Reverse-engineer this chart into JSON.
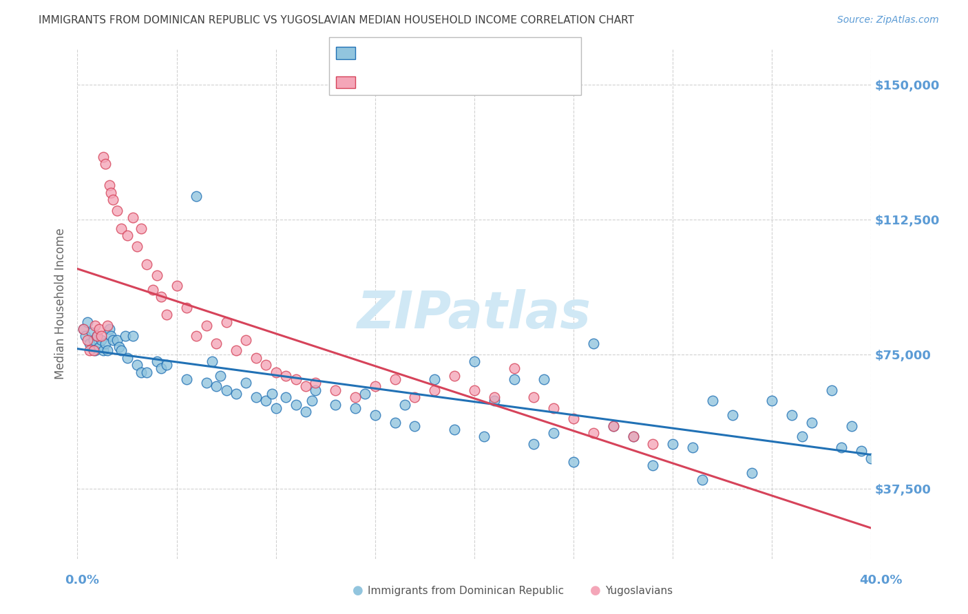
{
  "title": "IMMIGRANTS FROM DOMINICAN REPUBLIC VS YUGOSLAVIAN MEDIAN HOUSEHOLD INCOME CORRELATION CHART",
  "source": "Source: ZipAtlas.com",
  "ylabel": "Median Household Income",
  "y_ticks": [
    37500,
    75000,
    112500,
    150000
  ],
  "y_tick_labels": [
    "$37,500",
    "$75,000",
    "$112,500",
    "$150,000"
  ],
  "x_min": 0.0,
  "x_max": 40.0,
  "y_min": 18000,
  "y_max": 160000,
  "blue_color": "#92c5de",
  "pink_color": "#f4a6b8",
  "line_blue_color": "#2171b5",
  "line_pink_color": "#d6435a",
  "axis_label_color": "#5b9bd5",
  "title_color": "#404040",
  "grid_color": "#cccccc",
  "watermark_color": "#d0e8f5",
  "blue_scatter_x": [
    0.3,
    0.4,
    0.5,
    0.6,
    0.7,
    0.8,
    0.9,
    1.0,
    1.1,
    1.2,
    1.3,
    1.4,
    1.5,
    1.6,
    1.7,
    1.8,
    2.0,
    2.1,
    2.2,
    2.4,
    2.5,
    2.8,
    3.0,
    3.2,
    3.5,
    4.0,
    4.2,
    4.5,
    5.5,
    6.0,
    6.5,
    6.8,
    7.0,
    7.2,
    7.5,
    8.0,
    8.5,
    9.0,
    9.5,
    9.8,
    10.0,
    10.5,
    11.0,
    11.5,
    11.8,
    12.0,
    13.0,
    14.0,
    14.5,
    15.0,
    16.0,
    16.5,
    17.0,
    18.0,
    19.0,
    20.0,
    20.5,
    21.0,
    22.0,
    23.0,
    23.5,
    24.0,
    25.0,
    26.0,
    27.0,
    28.0,
    29.0,
    30.0,
    31.0,
    31.5,
    32.0,
    33.0,
    34.0,
    35.0,
    36.0,
    36.5,
    37.0,
    38.0,
    38.5,
    39.0,
    39.5,
    40.0
  ],
  "blue_scatter_y": [
    82000,
    80000,
    84000,
    78000,
    81000,
    79000,
    76000,
    80000,
    77000,
    79000,
    76000,
    78000,
    76000,
    82000,
    80000,
    79000,
    79000,
    77000,
    76000,
    80000,
    74000,
    80000,
    72000,
    70000,
    70000,
    73000,
    71000,
    72000,
    68000,
    119000,
    67000,
    73000,
    66000,
    69000,
    65000,
    64000,
    67000,
    63000,
    62000,
    64000,
    60000,
    63000,
    61000,
    59000,
    62000,
    65000,
    61000,
    60000,
    64000,
    58000,
    56000,
    61000,
    55000,
    68000,
    54000,
    73000,
    52000,
    62000,
    68000,
    50000,
    68000,
    53000,
    45000,
    78000,
    55000,
    52000,
    44000,
    50000,
    49000,
    40000,
    62000,
    58000,
    42000,
    62000,
    58000,
    52000,
    56000,
    65000,
    49000,
    55000,
    48000,
    46000
  ],
  "pink_scatter_x": [
    0.3,
    0.5,
    0.6,
    0.8,
    0.9,
    1.0,
    1.1,
    1.2,
    1.3,
    1.4,
    1.5,
    1.6,
    1.7,
    1.8,
    2.0,
    2.2,
    2.5,
    2.8,
    3.0,
    3.2,
    3.5,
    3.8,
    4.0,
    4.2,
    4.5,
    5.0,
    5.5,
    6.0,
    6.5,
    7.0,
    7.5,
    8.0,
    8.5,
    9.0,
    9.5,
    10.0,
    10.5,
    11.0,
    11.5,
    12.0,
    13.0,
    14.0,
    15.0,
    16.0,
    17.0,
    18.0,
    19.0,
    20.0,
    21.0,
    22.0,
    23.0,
    24.0,
    25.0,
    26.0,
    27.0,
    28.0,
    29.0
  ],
  "pink_scatter_y": [
    82000,
    79000,
    76000,
    76000,
    83000,
    80000,
    82000,
    80000,
    130000,
    128000,
    83000,
    122000,
    120000,
    118000,
    115000,
    110000,
    108000,
    113000,
    105000,
    110000,
    100000,
    93000,
    97000,
    91000,
    86000,
    94000,
    88000,
    80000,
    83000,
    78000,
    84000,
    76000,
    79000,
    74000,
    72000,
    70000,
    69000,
    68000,
    66000,
    67000,
    65000,
    63000,
    66000,
    68000,
    63000,
    65000,
    69000,
    65000,
    63000,
    71000,
    63000,
    60000,
    57000,
    53000,
    55000,
    52000,
    50000
  ]
}
